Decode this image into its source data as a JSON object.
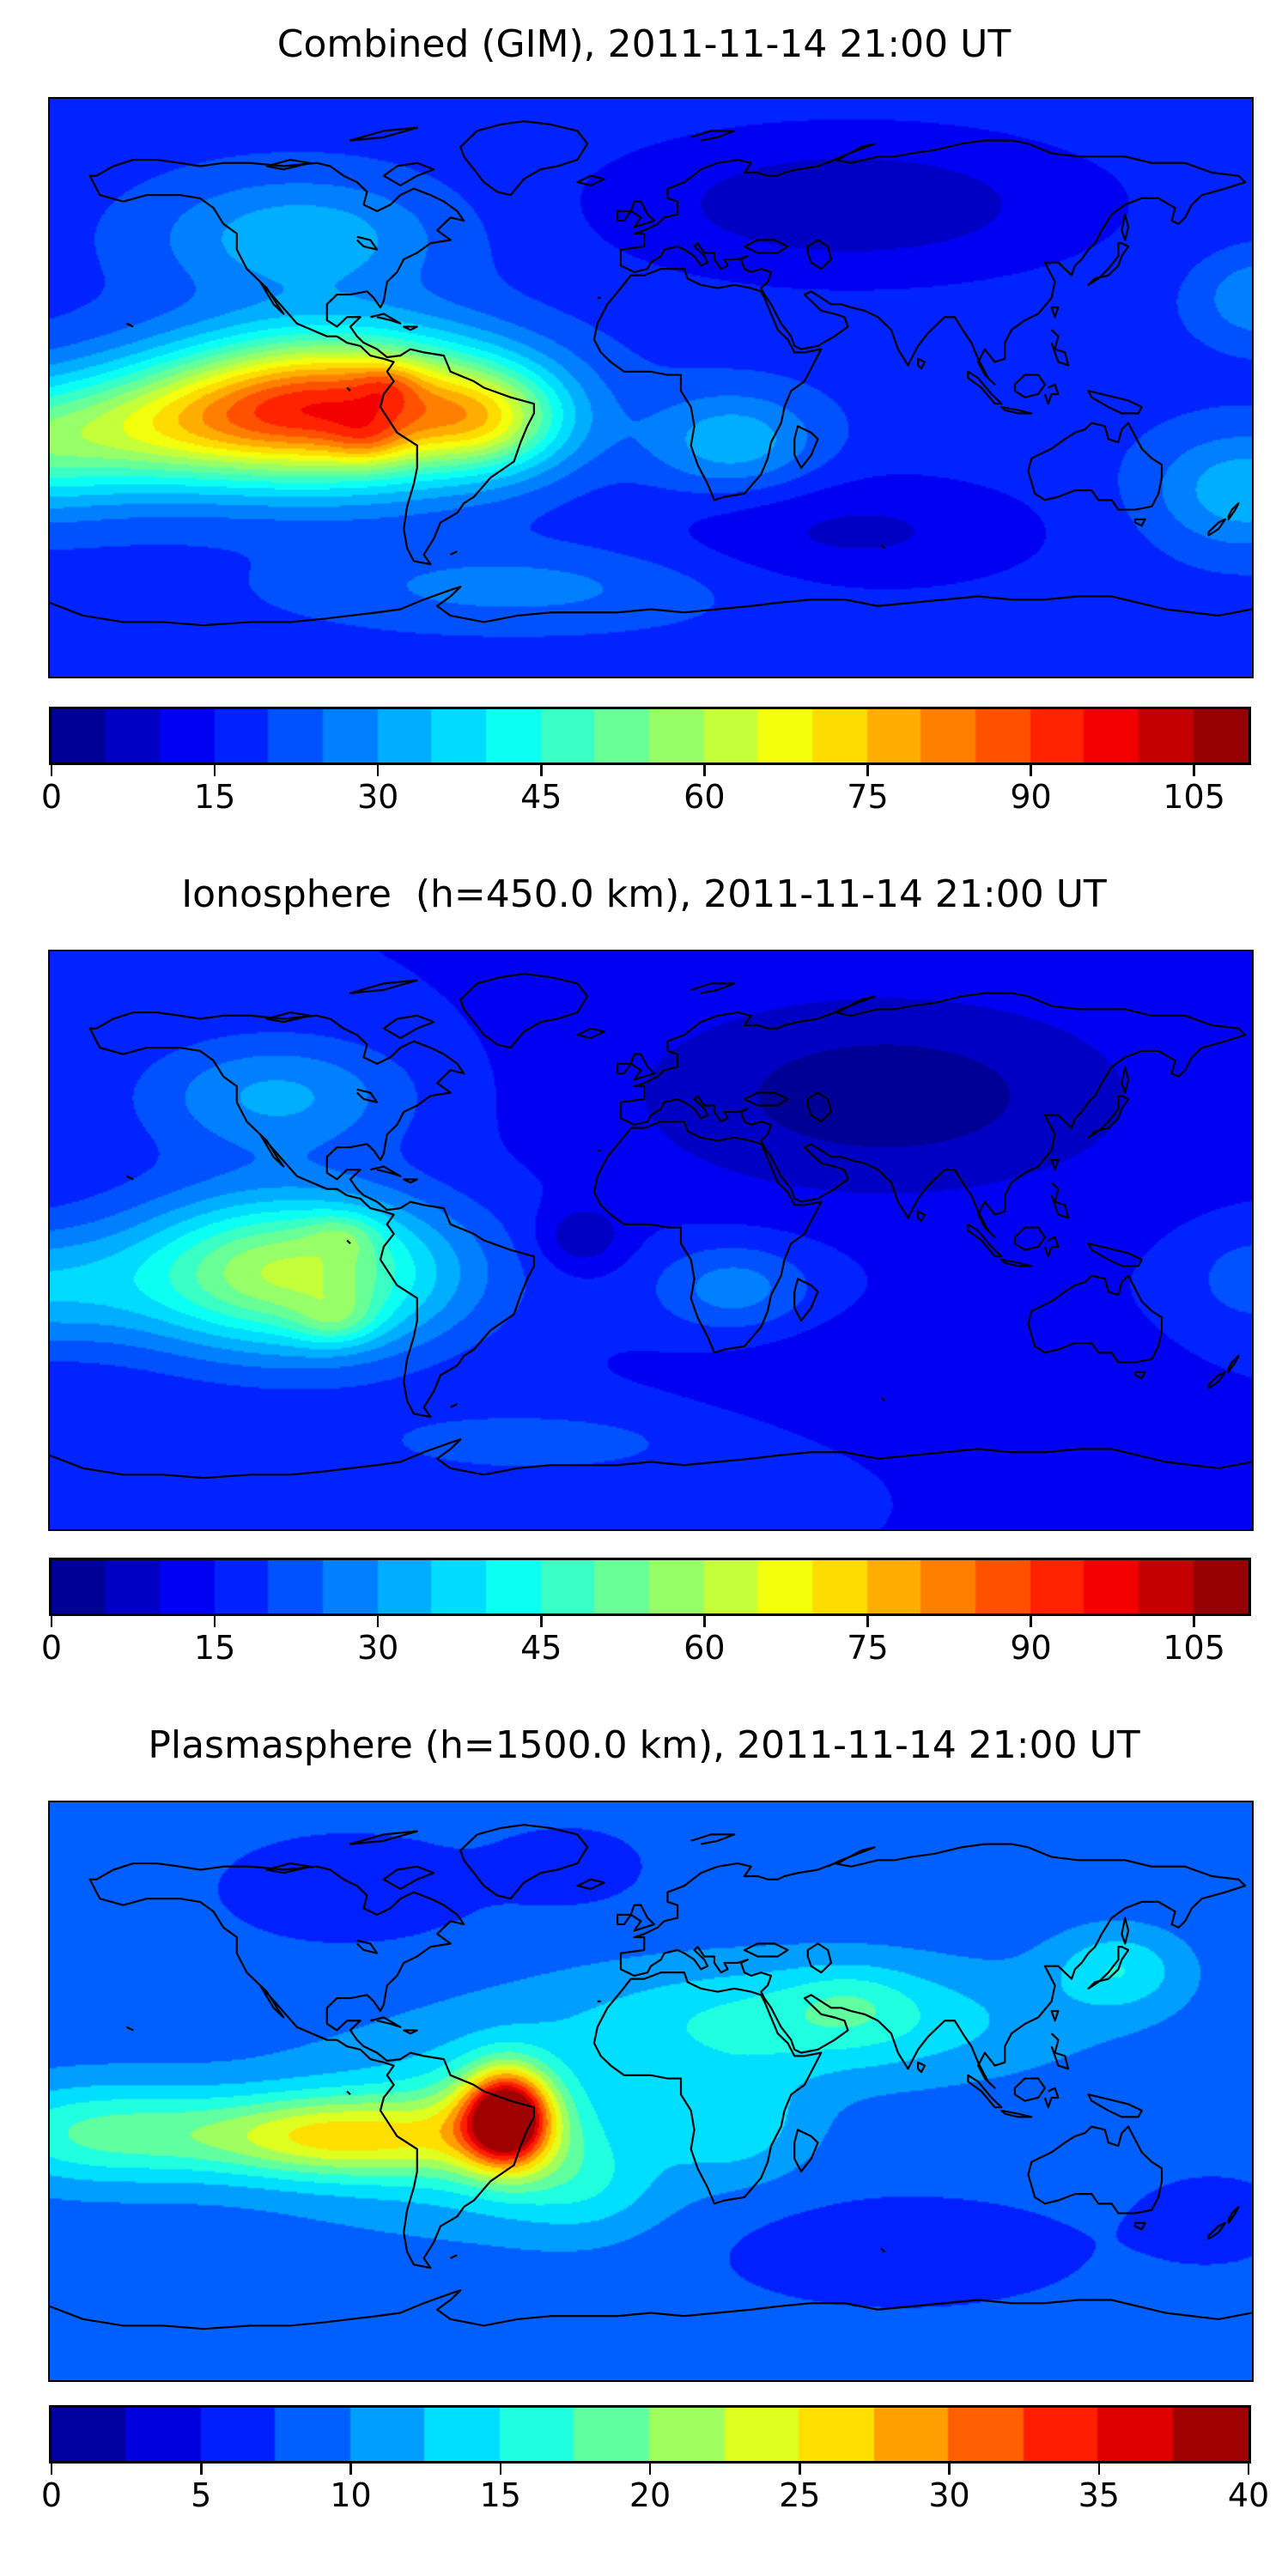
{
  "figure": {
    "background_color": "#ffffff",
    "coastline_color": "#000000",
    "n_subplots": 3
  },
  "panels": [
    {
      "id": "combined",
      "title": "Combined (GIM), 2011-11-14 21:00 UT"
    },
    {
      "id": "ionosphere",
      "title": "Ionosphere  (h=450.0 km), 2011-11-14 21:00 UT"
    },
    {
      "id": "plasmasphere",
      "title": "Plasmasphere (h=1500.0 km), 2011-11-14 21:00 UT"
    }
  ],
  "chart_data": [
    {
      "type": "heatmap",
      "subtype": "filled-contour-world-map",
      "title": "Combined (GIM), 2011-11-14 21:00 UT",
      "colormap": "jet",
      "levels": 22,
      "vmin": 0,
      "vmax": 110,
      "contour_step": 5,
      "colorbar_ticks": [
        0,
        15,
        30,
        45,
        60,
        75,
        90,
        105
      ],
      "lon_range": [
        -180,
        180
      ],
      "lat_range": [
        -90,
        90
      ],
      "grid": false,
      "legend_position": "bottom-colorbar",
      "base_value": 18,
      "features": [
        {
          "name": "equatorial-anomaly-main",
          "lon": -95,
          "lat": -6,
          "slon": 36,
          "slat": 16,
          "amp": 72
        },
        {
          "name": "anomaly-core-north",
          "lon": -79,
          "lat": 1,
          "slon": 7,
          "slat": 5,
          "amp": 10
        },
        {
          "name": "anomaly-core-south",
          "lon": -85,
          "lat": -16,
          "slon": 8,
          "slat": 6,
          "amp": 10
        },
        {
          "name": "pacific-west-extension",
          "lon": -145,
          "lat": -12,
          "slon": 28,
          "slat": 13,
          "amp": 22
        },
        {
          "name": "dateline-band",
          "lon": -195,
          "lat": -18,
          "slon": 30,
          "slat": 14,
          "amp": 30
        },
        {
          "name": "brazil-ridge",
          "lon": -48,
          "lat": -10,
          "slon": 16,
          "slat": 11,
          "amp": 26
        },
        {
          "name": "north-america-enhancement",
          "lon": -105,
          "lat": 47,
          "slon": 30,
          "slat": 13,
          "amp": 16
        },
        {
          "name": "southern-africa-enhancement",
          "lon": 25,
          "lat": -17,
          "slon": 18,
          "slat": 11,
          "amp": 16
        },
        {
          "name": "eurasia-night-depletion",
          "lon": 60,
          "lat": 57,
          "slon": 50,
          "slat": 16,
          "amp": -12
        },
        {
          "name": "south-indian-depletion",
          "lon": 60,
          "lat": -45,
          "slon": 40,
          "slat": 13,
          "amp": -9
        },
        {
          "name": "southwest-pacific-enhancement",
          "lon": 178,
          "lat": -32,
          "slon": 20,
          "slat": 13,
          "amp": 16
        },
        {
          "name": "northwest-pacific-enhancement",
          "lon": 183,
          "lat": 28,
          "slon": 14,
          "slat": 10,
          "amp": 12
        },
        {
          "name": "antarctic-coast-band",
          "lon": -40,
          "lat": -62,
          "slon": 45,
          "slat": 9,
          "amp": 9
        }
      ]
    },
    {
      "type": "heatmap",
      "subtype": "filled-contour-world-map",
      "title": "Ionosphere  (h=450.0 km), 2011-11-14 21:00 UT",
      "colormap": "jet",
      "levels": 22,
      "vmin": 0,
      "vmax": 110,
      "contour_step": 5,
      "colorbar_ticks": [
        0,
        15,
        30,
        45,
        60,
        75,
        90,
        105
      ],
      "lon_range": [
        -180,
        180
      ],
      "lat_range": [
        -90,
        90
      ],
      "grid": false,
      "legend_position": "bottom-colorbar",
      "base_value": 15,
      "features": [
        {
          "name": "equatorial-anomaly-main",
          "lon": -108,
          "lat": -10,
          "slon": 34,
          "slat": 17,
          "amp": 46
        },
        {
          "name": "anomaly-core-south",
          "lon": -94,
          "lat": -25,
          "slon": 9,
          "slat": 6,
          "amp": 12
        },
        {
          "name": "anomaly-core-north",
          "lon": -92,
          "lat": 2,
          "slon": 8,
          "slat": 5,
          "amp": 9
        },
        {
          "name": "dateline-band",
          "lon": -192,
          "lat": -15,
          "slon": 28,
          "slat": 13,
          "amp": 18
        },
        {
          "name": "north-america-enhancement",
          "lon": -112,
          "lat": 45,
          "slon": 28,
          "slat": 13,
          "amp": 16
        },
        {
          "name": "eurasia-night-depletion",
          "lon": 70,
          "lat": 45,
          "slon": 52,
          "slat": 22,
          "amp": -13
        },
        {
          "name": "atlantic-local-minimum",
          "lon": -21,
          "lat": 1,
          "slon": 9,
          "slat": 7,
          "amp": -10
        },
        {
          "name": "southern-africa-enhancement",
          "lon": 25,
          "lat": -15,
          "slon": 17,
          "slat": 10,
          "amp": 13
        },
        {
          "name": "south-indian-depletion",
          "lon": 70,
          "lat": -42,
          "slon": 38,
          "slat": 13,
          "amp": -5
        },
        {
          "name": "antarctic-coast-band",
          "lon": -35,
          "lat": -63,
          "slon": 45,
          "slat": 9,
          "amp": 7
        },
        {
          "name": "dateline-south-enhancement",
          "lon": 182,
          "lat": -12,
          "slon": 14,
          "slat": 10,
          "amp": 9
        }
      ]
    },
    {
      "type": "heatmap",
      "subtype": "filled-contour-world-map",
      "title": "Plasmasphere (h=1500.0 km), 2011-11-14 21:00 UT",
      "colormap": "jet",
      "levels": 16,
      "vmin": 0,
      "vmax": 40,
      "contour_step": 2.5,
      "colorbar_ticks": [
        0,
        5,
        10,
        15,
        20,
        25,
        30,
        35,
        40
      ],
      "lon_range": [
        -180,
        180
      ],
      "lat_range": [
        -90,
        90
      ],
      "grid": false,
      "legend_position": "bottom-colorbar",
      "base_value": 8.5,
      "features": [
        {
          "name": "plasmasphere-core",
          "lon": -43,
          "lat": -8,
          "slon": 8.5,
          "slat": 10,
          "amp": 25
        },
        {
          "name": "core-orange-ring",
          "lon": -45,
          "lat": -10,
          "slon": 15,
          "slat": 13,
          "amp": 8
        },
        {
          "name": "equatorial-band-west",
          "lon": -95,
          "lat": -14,
          "slon": 30,
          "slat": 9,
          "amp": 14
        },
        {
          "name": "broad-envelope",
          "lon": -55,
          "lat": -12,
          "slon": 42,
          "slat": 20,
          "amp": 6
        },
        {
          "name": "dateline-extension",
          "lon": -165,
          "lat": -13,
          "slon": 28,
          "slat": 11,
          "amp": 9
        },
        {
          "name": "africa-asia-band",
          "lon": 45,
          "lat": 22,
          "slon": 50,
          "slat": 13,
          "amp": 7.5
        },
        {
          "name": "arabia-enhancement",
          "lon": 60,
          "lat": 28,
          "slon": 13,
          "slat": 8,
          "amp": 3
        },
        {
          "name": "east-asia-enhancement",
          "lon": 140,
          "lat": 38,
          "slon": 14,
          "slat": 9,
          "amp": 6
        },
        {
          "name": "central-africa-extension",
          "lon": 25,
          "lat": -10,
          "slon": 16,
          "slat": 12,
          "amp": 5
        },
        {
          "name": "southeast-atlantic-extension",
          "lon": -20,
          "lat": -30,
          "slon": 16,
          "slat": 11,
          "amp": 4
        },
        {
          "name": "arctic-canada-depletion",
          "lon": -90,
          "lat": 63,
          "slon": 25,
          "slat": 11,
          "amp": -3.5
        },
        {
          "name": "north-atlantic-depletion",
          "lon": -25,
          "lat": 70,
          "slon": 15,
          "slat": 8,
          "amp": -3
        },
        {
          "name": "south-indian-depletion",
          "lon": 75,
          "lat": -50,
          "slon": 35,
          "slat": 11,
          "amp": -3.5
        },
        {
          "name": "south-pacific-depletion",
          "lon": 168,
          "lat": -40,
          "slon": 15,
          "slat": 9,
          "amp": -3
        }
      ]
    }
  ]
}
